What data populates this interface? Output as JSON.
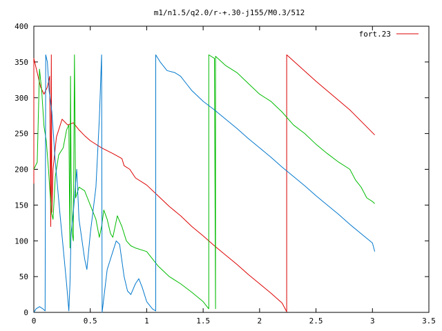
{
  "chart_data": {
    "type": "line",
    "title": "m1/n1.5/q2.0/r-+.30-j155/M0.3/512",
    "xlim": [
      0,
      3.5
    ],
    "ylim": [
      0,
      400
    ],
    "x_ticks": [
      "0",
      "0.5",
      "1",
      "1.5",
      "2",
      "2.5",
      "3",
      "3.5"
    ],
    "y_ticks": [
      "0",
      "50",
      "100",
      "150",
      "200",
      "250",
      "300",
      "350",
      "400"
    ],
    "grid": false,
    "legend_position": "top-right",
    "legend": [
      {
        "label": "fort.23",
        "color": "#dd0000"
      }
    ],
    "colors": {
      "red": "#dd0000",
      "green": "#00bb00",
      "blue": "#0077cc"
    },
    "series": [
      {
        "name": "fort.23",
        "color": "#dd0000",
        "points": [
          [
            0,
            180
          ],
          [
            0,
            355
          ],
          [
            0.03,
            335
          ],
          [
            0.06,
            315
          ],
          [
            0.09,
            305
          ],
          [
            0.12,
            315
          ],
          [
            0.14,
            330
          ],
          [
            0.15,
            120
          ],
          [
            0.155,
            360
          ],
          [
            0.16,
            140
          ],
          [
            0.17,
            200
          ],
          [
            0.2,
            245
          ],
          [
            0.25,
            270
          ],
          [
            0.3,
            262
          ],
          [
            0.35,
            265
          ],
          [
            0.4,
            255
          ],
          [
            0.45,
            247
          ],
          [
            0.5,
            240
          ],
          [
            0.6,
            230
          ],
          [
            0.7,
            222
          ],
          [
            0.78,
            215
          ],
          [
            0.8,
            205
          ],
          [
            0.85,
            200
          ],
          [
            0.9,
            188
          ],
          [
            1.0,
            178
          ],
          [
            1.1,
            163
          ],
          [
            1.2,
            148
          ],
          [
            1.3,
            135
          ],
          [
            1.4,
            120
          ],
          [
            1.5,
            107
          ],
          [
            1.6,
            93
          ],
          [
            1.7,
            80
          ],
          [
            1.8,
            67
          ],
          [
            1.9,
            53
          ],
          [
            2.0,
            40
          ],
          [
            2.1,
            27
          ],
          [
            2.2,
            13
          ],
          [
            2.24,
            1
          ],
          [
            2.24,
            360
          ],
          [
            2.5,
            323
          ],
          [
            2.8,
            283
          ],
          [
            3.02,
            248
          ]
        ]
      },
      {
        "name": "",
        "color": "#00bb00",
        "points": [
          [
            0,
            200
          ],
          [
            0.03,
            210
          ],
          [
            0.05,
            340
          ],
          [
            0.07,
            310
          ],
          [
            0.09,
            260
          ],
          [
            0.11,
            240
          ],
          [
            0.13,
            200
          ],
          [
            0.155,
            140
          ],
          [
            0.17,
            130
          ],
          [
            0.19,
            190
          ],
          [
            0.22,
            220
          ],
          [
            0.26,
            230
          ],
          [
            0.29,
            255
          ],
          [
            0.31,
            262
          ],
          [
            0.32,
            90
          ],
          [
            0.325,
            330
          ],
          [
            0.33,
            200
          ],
          [
            0.34,
            110
          ],
          [
            0.35,
            100
          ],
          [
            0.36,
            360
          ],
          [
            0.37,
            160
          ],
          [
            0.4,
            175
          ],
          [
            0.45,
            170
          ],
          [
            0.5,
            150
          ],
          [
            0.55,
            130
          ],
          [
            0.58,
            105
          ],
          [
            0.6,
            120
          ],
          [
            0.62,
            143
          ],
          [
            0.65,
            130
          ],
          [
            0.68,
            110
          ],
          [
            0.7,
            105
          ],
          [
            0.74,
            135
          ],
          [
            0.78,
            120
          ],
          [
            0.82,
            100
          ],
          [
            0.86,
            93
          ],
          [
            0.9,
            90
          ],
          [
            1.0,
            85
          ],
          [
            1.1,
            65
          ],
          [
            1.2,
            50
          ],
          [
            1.3,
            40
          ],
          [
            1.4,
            28
          ],
          [
            1.5,
            15
          ],
          [
            1.55,
            5
          ],
          [
            1.55,
            360
          ],
          [
            1.6,
            355
          ],
          [
            1.61,
            5
          ],
          [
            1.61,
            358
          ],
          [
            1.7,
            345
          ],
          [
            1.8,
            335
          ],
          [
            1.9,
            320
          ],
          [
            2.0,
            305
          ],
          [
            2.1,
            295
          ],
          [
            2.2,
            280
          ],
          [
            2.3,
            262
          ],
          [
            2.4,
            250
          ],
          [
            2.5,
            235
          ],
          [
            2.6,
            222
          ],
          [
            2.7,
            210
          ],
          [
            2.8,
            200
          ],
          [
            2.85,
            185
          ],
          [
            2.9,
            175
          ],
          [
            2.95,
            160
          ],
          [
            3.0,
            155
          ],
          [
            3.02,
            152
          ]
        ]
      },
      {
        "name": "",
        "color": "#0077cc",
        "points": [
          [
            0,
            0
          ],
          [
            0.02,
            5
          ],
          [
            0.05,
            8
          ],
          [
            0.08,
            5
          ],
          [
            0.1,
            2
          ],
          [
            0.105,
            360
          ],
          [
            0.12,
            350
          ],
          [
            0.135,
            310
          ],
          [
            0.16,
            280
          ],
          [
            0.19,
            210
          ],
          [
            0.23,
            140
          ],
          [
            0.26,
            90
          ],
          [
            0.29,
            40
          ],
          [
            0.31,
            2
          ],
          [
            0.32,
            40
          ],
          [
            0.33,
            110
          ],
          [
            0.35,
            140
          ],
          [
            0.38,
            200
          ],
          [
            0.4,
            130
          ],
          [
            0.45,
            75
          ],
          [
            0.47,
            60
          ],
          [
            0.5,
            110
          ],
          [
            0.55,
            175
          ],
          [
            0.58,
            270
          ],
          [
            0.6,
            360
          ],
          [
            0.605,
            0
          ],
          [
            0.62,
            20
          ],
          [
            0.65,
            60
          ],
          [
            0.7,
            85
          ],
          [
            0.73,
            100
          ],
          [
            0.76,
            95
          ],
          [
            0.8,
            50
          ],
          [
            0.83,
            30
          ],
          [
            0.86,
            25
          ],
          [
            0.9,
            40
          ],
          [
            0.93,
            47
          ],
          [
            0.96,
            35
          ],
          [
            1.0,
            15
          ],
          [
            1.05,
            5
          ],
          [
            1.08,
            2
          ],
          [
            1.08,
            360
          ],
          [
            1.12,
            350
          ],
          [
            1.18,
            338
          ],
          [
            1.25,
            335
          ],
          [
            1.3,
            330
          ],
          [
            1.35,
            320
          ],
          [
            1.4,
            310
          ],
          [
            1.5,
            295
          ],
          [
            1.6,
            283
          ],
          [
            1.7,
            270
          ],
          [
            1.8,
            257
          ],
          [
            1.9,
            243
          ],
          [
            2.0,
            230
          ],
          [
            2.1,
            217
          ],
          [
            2.2,
            203
          ],
          [
            2.3,
            190
          ],
          [
            2.4,
            177
          ],
          [
            2.5,
            163
          ],
          [
            2.6,
            150
          ],
          [
            2.7,
            137
          ],
          [
            2.8,
            123
          ],
          [
            2.9,
            110
          ],
          [
            3.0,
            97
          ],
          [
            3.02,
            85
          ]
        ]
      }
    ]
  }
}
